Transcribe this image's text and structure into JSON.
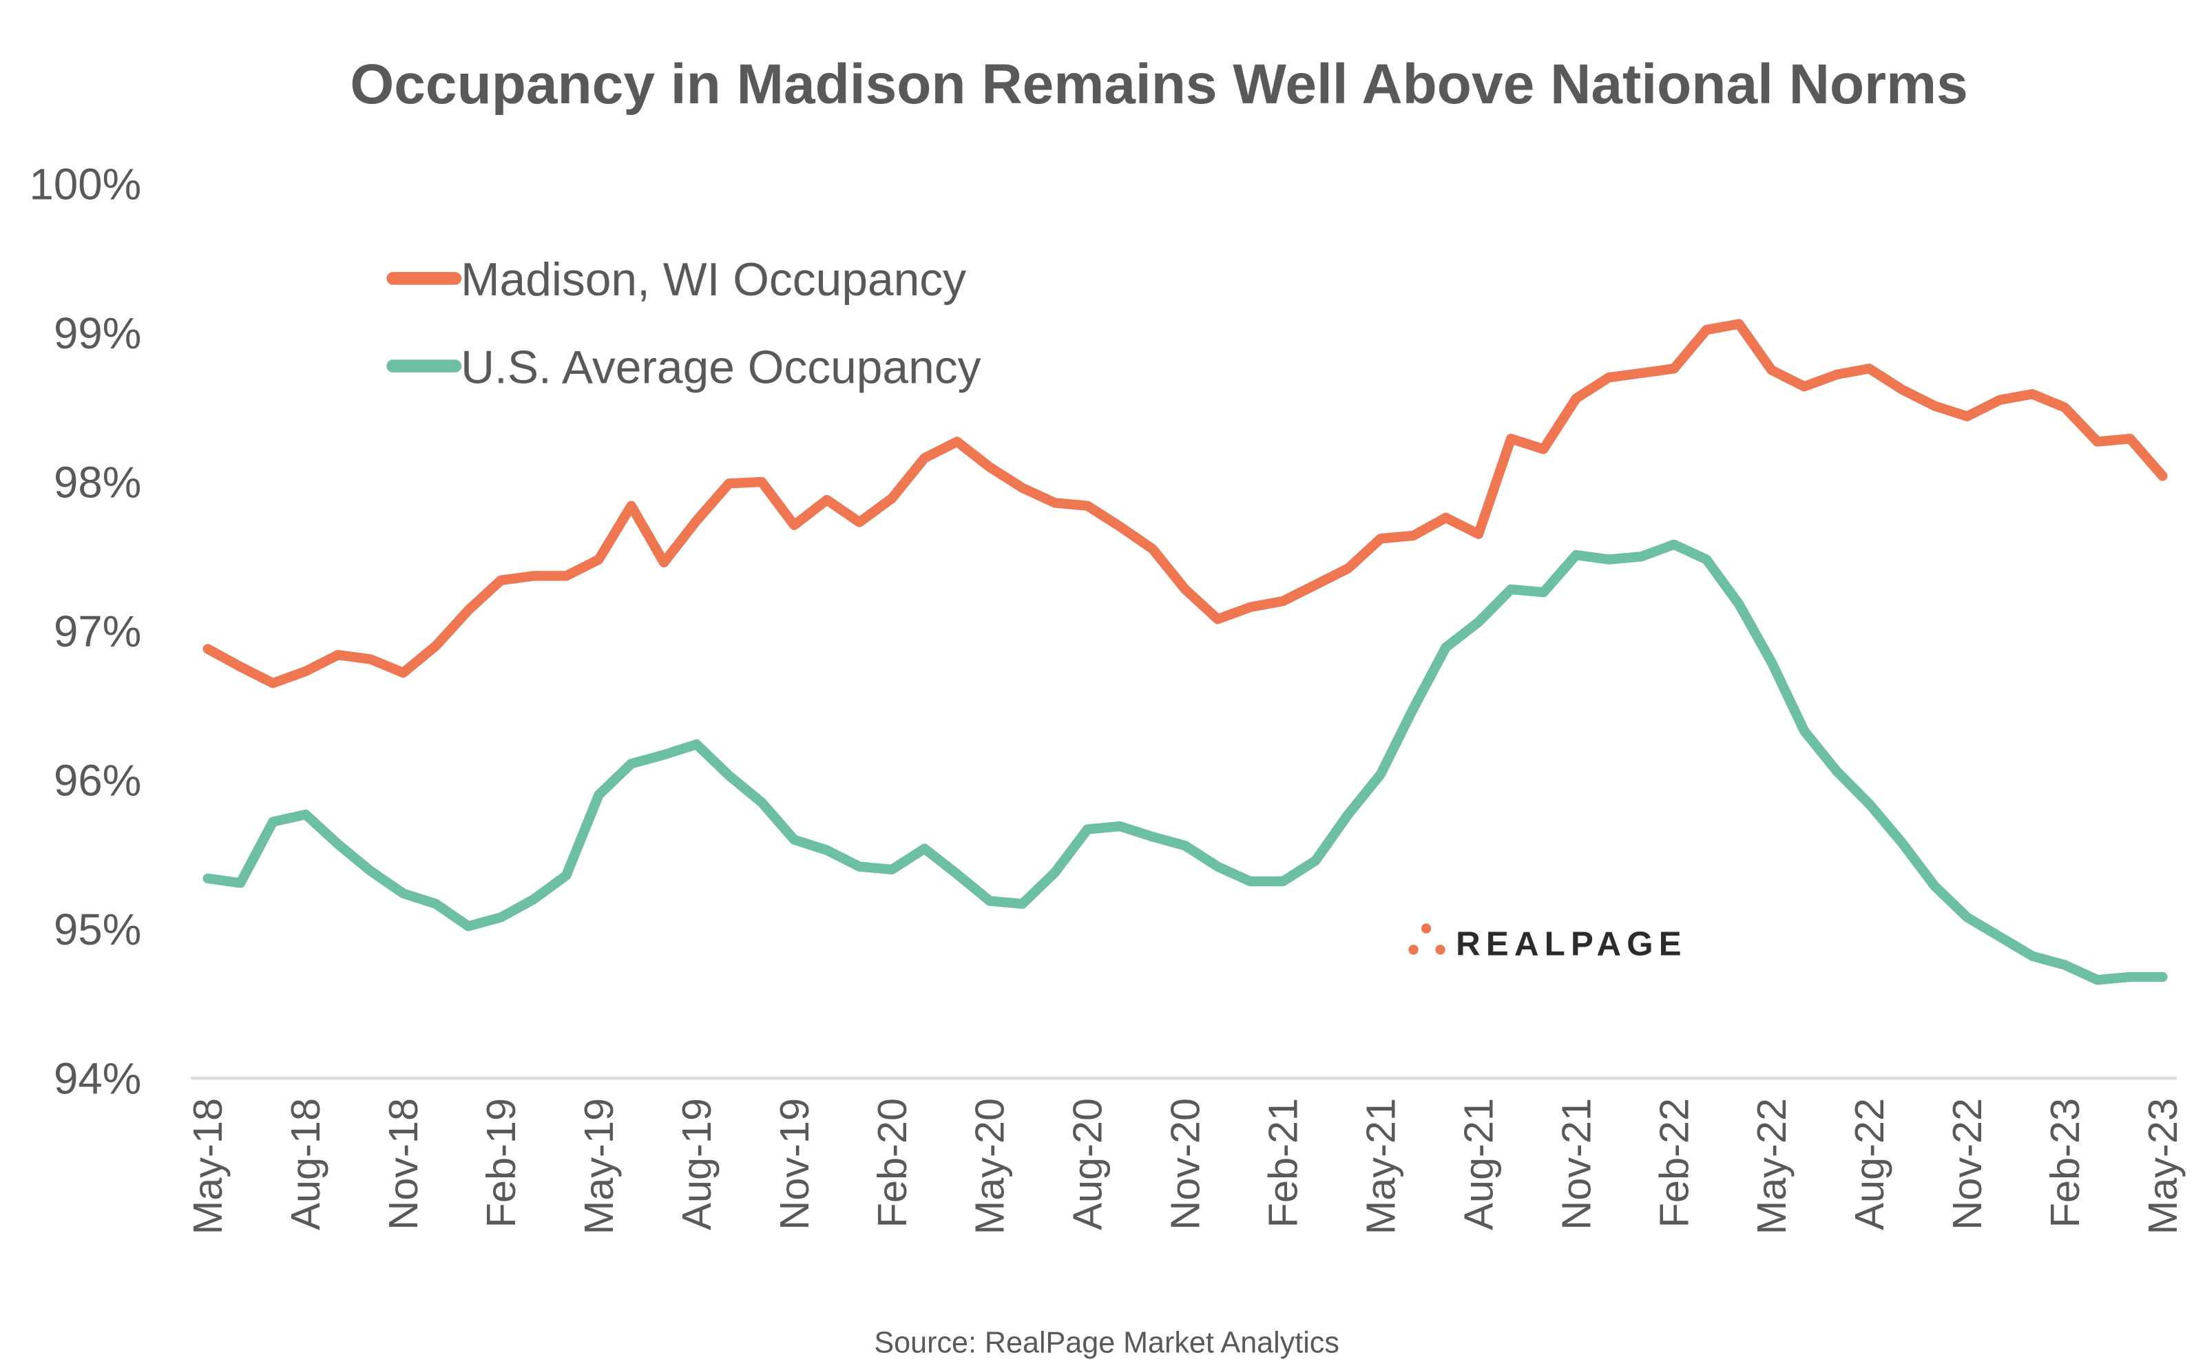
{
  "chart_data": {
    "type": "line",
    "title": "Occupancy in Madison Remains Well Above National Norms",
    "source": "Source: RealPage Market Analytics",
    "logo": "REALPAGE",
    "xlabel": "",
    "ylabel": "",
    "ylim": [
      94,
      100
    ],
    "yticks": [
      "94%",
      "95%",
      "96%",
      "97%",
      "98%",
      "99%",
      "100%"
    ],
    "grid": false,
    "legend_position": "top-left",
    "x": [
      "May-18",
      "Jun-18",
      "Jul-18",
      "Aug-18",
      "Sep-18",
      "Oct-18",
      "Nov-18",
      "Dec-18",
      "Jan-19",
      "Feb-19",
      "Mar-19",
      "Apr-19",
      "May-19",
      "Jun-19",
      "Jul-19",
      "Aug-19",
      "Sep-19",
      "Oct-19",
      "Nov-19",
      "Dec-19",
      "Jan-20",
      "Feb-20",
      "Mar-20",
      "Apr-20",
      "May-20",
      "Jun-20",
      "Jul-20",
      "Aug-20",
      "Sep-20",
      "Oct-20",
      "Nov-20",
      "Dec-20",
      "Jan-21",
      "Feb-21",
      "Mar-21",
      "Apr-21",
      "May-21",
      "Jun-21",
      "Jul-21",
      "Aug-21",
      "Sep-21",
      "Oct-21",
      "Nov-21",
      "Dec-21",
      "Jan-22",
      "Feb-22",
      "Mar-22",
      "Apr-22",
      "May-22",
      "Jun-22",
      "Jul-22",
      "Aug-22",
      "Sep-22",
      "Oct-22",
      "Nov-22",
      "Dec-22",
      "Jan-23",
      "Feb-23",
      "Mar-23",
      "Apr-23",
      "May-23"
    ],
    "xtick_labels": [
      "May-18",
      "Aug-18",
      "Nov-18",
      "Feb-19",
      "May-19",
      "Aug-19",
      "Nov-19",
      "Feb-20",
      "May-20",
      "Aug-20",
      "Nov-20",
      "Feb-21",
      "May-21",
      "Aug-21",
      "Nov-21",
      "Feb-22",
      "May-22",
      "Aug-22",
      "Nov-22",
      "Feb-23",
      "May-23"
    ],
    "series": [
      {
        "name": "Madison, WI Occupancy",
        "color": "#EE7752",
        "values": [
          96.88,
          96.76,
          96.65,
          96.73,
          96.84,
          96.81,
          96.72,
          96.9,
          97.14,
          97.34,
          97.37,
          97.37,
          97.48,
          97.84,
          97.46,
          97.74,
          97.99,
          98.0,
          97.71,
          97.88,
          97.73,
          97.89,
          98.16,
          98.27,
          98.1,
          97.96,
          97.86,
          97.84,
          97.7,
          97.55,
          97.28,
          97.08,
          97.16,
          97.2,
          97.31,
          97.42,
          97.62,
          97.64,
          97.76,
          97.65,
          98.29,
          98.22,
          98.56,
          98.7,
          98.73,
          98.76,
          99.02,
          99.06,
          98.75,
          98.64,
          98.72,
          98.76,
          98.62,
          98.51,
          98.44,
          98.55,
          98.59,
          98.5,
          98.27,
          98.29,
          98.04
        ]
      },
      {
        "name": "U.S. Average Occupancy",
        "color": "#6CBFA0",
        "values": [
          95.34,
          95.31,
          95.72,
          95.77,
          95.57,
          95.39,
          95.24,
          95.17,
          95.02,
          95.08,
          95.2,
          95.36,
          95.9,
          96.11,
          96.17,
          96.24,
          96.03,
          95.85,
          95.6,
          95.53,
          95.42,
          95.4,
          95.54,
          95.37,
          95.19,
          95.17,
          95.38,
          95.67,
          95.69,
          95.62,
          95.56,
          95.42,
          95.32,
          95.32,
          95.46,
          95.77,
          96.04,
          96.48,
          96.89,
          97.06,
          97.28,
          97.26,
          97.51,
          97.48,
          97.5,
          97.58,
          97.48,
          97.18,
          96.79,
          96.33,
          96.06,
          95.84,
          95.58,
          95.29,
          95.08,
          94.95,
          94.82,
          94.76,
          94.66,
          94.68,
          94.68
        ]
      }
    ]
  }
}
